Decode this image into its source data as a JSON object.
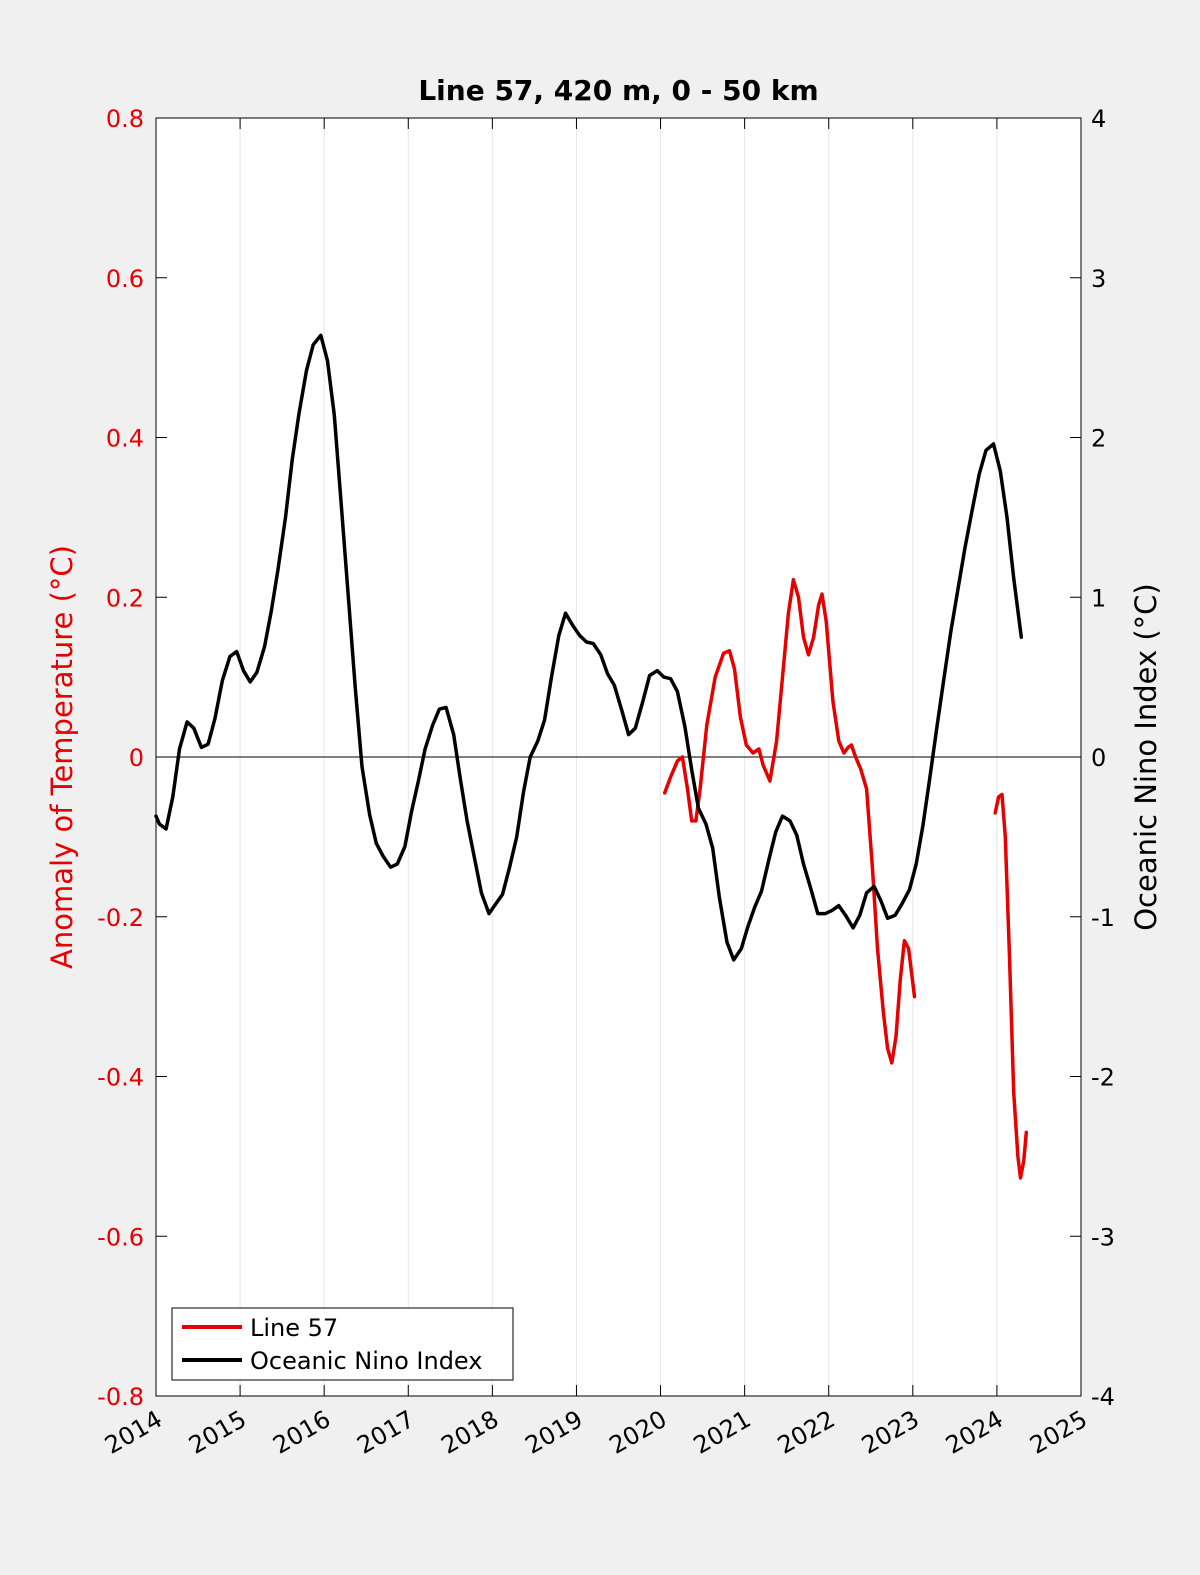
{
  "chart_data": {
    "type": "line",
    "title": "Line 57, 420 m, 0 - 50 km",
    "xlabel": "",
    "ylabel_left": "Anomaly of Temperature (°C)",
    "ylabel_right": "Oceanic Nino Index (°C)",
    "xlim": [
      2014,
      2025
    ],
    "ylim_left": [
      -0.8,
      0.8
    ],
    "ylim_right": [
      -4,
      4
    ],
    "x_ticks": [
      "2014",
      "2015",
      "2016",
      "2017",
      "2018",
      "2019",
      "2020",
      "2021",
      "2022",
      "2023",
      "2024",
      "2025"
    ],
    "y_ticks_left": [
      "-0.8",
      "-0.6",
      "-0.4",
      "-0.2",
      "0",
      "0.2",
      "0.4",
      "0.6",
      "0.8"
    ],
    "y_ticks_right": [
      "-4",
      "-3",
      "-2",
      "-1",
      "0",
      "1",
      "2",
      "3",
      "4"
    ],
    "grid": "vertical",
    "zero_line": true,
    "legend_position": "bottom-left",
    "colors": {
      "line57": "#e60000",
      "oni": "#000000",
      "left_axis": "#e60000",
      "right_axis": "#000000"
    },
    "series": [
      {
        "name": "Line 57",
        "axis": "left",
        "segments": [
          [
            [
              2020.05,
              -0.045
            ],
            [
              2020.12,
              -0.025
            ],
            [
              2020.2,
              -0.005
            ],
            [
              2020.26,
              0.0
            ],
            [
              2020.32,
              -0.04
            ],
            [
              2020.37,
              -0.08
            ],
            [
              2020.42,
              -0.08
            ],
            [
              2020.47,
              -0.04
            ],
            [
              2020.55,
              0.04
            ],
            [
              2020.65,
              0.1
            ],
            [
              2020.75,
              0.13
            ],
            [
              2020.82,
              0.133
            ],
            [
              2020.88,
              0.11
            ],
            [
              2020.95,
              0.05
            ],
            [
              2021.02,
              0.015
            ],
            [
              2021.1,
              0.005
            ],
            [
              2021.17,
              0.01
            ],
            [
              2021.22,
              -0.01
            ],
            [
              2021.3,
              -0.03
            ],
            [
              2021.38,
              0.02
            ],
            [
              2021.45,
              0.1
            ],
            [
              2021.52,
              0.18
            ],
            [
              2021.58,
              0.222
            ],
            [
              2021.64,
              0.2
            ],
            [
              2021.7,
              0.15
            ],
            [
              2021.76,
              0.128
            ],
            [
              2021.82,
              0.15
            ],
            [
              2021.88,
              0.19
            ],
            [
              2021.92,
              0.204
            ],
            [
              2021.97,
              0.17
            ],
            [
              2022.05,
              0.07
            ],
            [
              2022.12,
              0.02
            ],
            [
              2022.18,
              0.005
            ],
            [
              2022.23,
              0.012
            ],
            [
              2022.27,
              0.015
            ],
            [
              2022.32,
              0.0
            ],
            [
              2022.38,
              -0.015
            ],
            [
              2022.45,
              -0.04
            ],
            [
              2022.52,
              -0.14
            ],
            [
              2022.58,
              -0.24
            ],
            [
              2022.65,
              -0.32
            ],
            [
              2022.7,
              -0.365
            ],
            [
              2022.75,
              -0.383
            ],
            [
              2022.8,
              -0.35
            ],
            [
              2022.85,
              -0.28
            ],
            [
              2022.9,
              -0.23
            ],
            [
              2022.95,
              -0.24
            ],
            [
              2023.02,
              -0.3
            ]
          ],
          [
            [
              2023.98,
              -0.07
            ],
            [
              2024.02,
              -0.05
            ],
            [
              2024.06,
              -0.047
            ],
            [
              2024.1,
              -0.1
            ],
            [
              2024.15,
              -0.25
            ],
            [
              2024.2,
              -0.42
            ],
            [
              2024.25,
              -0.5
            ],
            [
              2024.28,
              -0.527
            ],
            [
              2024.32,
              -0.505
            ],
            [
              2024.35,
              -0.47
            ]
          ]
        ]
      },
      {
        "name": "Oceanic Nino Index",
        "axis": "right",
        "segments": [
          [
            [
              2014.0,
              -0.37
            ],
            [
              2014.04,
              -0.42
            ],
            [
              2014.12,
              -0.45
            ],
            [
              2014.2,
              -0.25
            ],
            [
              2014.28,
              0.05
            ],
            [
              2014.37,
              0.22
            ],
            [
              2014.45,
              0.18
            ],
            [
              2014.54,
              0.06
            ],
            [
              2014.62,
              0.08
            ],
            [
              2014.7,
              0.24
            ],
            [
              2014.79,
              0.48
            ],
            [
              2014.88,
              0.63
            ],
            [
              2014.96,
              0.66
            ],
            [
              2015.04,
              0.54
            ],
            [
              2015.12,
              0.47
            ],
            [
              2015.2,
              0.53
            ],
            [
              2015.29,
              0.69
            ],
            [
              2015.37,
              0.91
            ],
            [
              2015.45,
              1.17
            ],
            [
              2015.54,
              1.5
            ],
            [
              2015.62,
              1.86
            ],
            [
              2015.7,
              2.15
            ],
            [
              2015.79,
              2.42
            ],
            [
              2015.87,
              2.58
            ],
            [
              2015.96,
              2.64
            ],
            [
              2016.04,
              2.48
            ],
            [
              2016.12,
              2.14
            ],
            [
              2016.2,
              1.6
            ],
            [
              2016.29,
              0.98
            ],
            [
              2016.37,
              0.43
            ],
            [
              2016.45,
              -0.06
            ],
            [
              2016.54,
              -0.36
            ],
            [
              2016.62,
              -0.54
            ],
            [
              2016.7,
              -0.62
            ],
            [
              2016.79,
              -0.69
            ],
            [
              2016.87,
              -0.67
            ],
            [
              2016.96,
              -0.56
            ],
            [
              2017.04,
              -0.34
            ],
            [
              2017.12,
              -0.15
            ],
            [
              2017.2,
              0.05
            ],
            [
              2017.29,
              0.2
            ],
            [
              2017.37,
              0.3
            ],
            [
              2017.45,
              0.31
            ],
            [
              2017.54,
              0.14
            ],
            [
              2017.62,
              -0.14
            ],
            [
              2017.7,
              -0.4
            ],
            [
              2017.79,
              -0.64
            ],
            [
              2017.87,
              -0.85
            ],
            [
              2017.96,
              -0.98
            ],
            [
              2018.04,
              -0.92
            ],
            [
              2018.12,
              -0.86
            ],
            [
              2018.2,
              -0.7
            ],
            [
              2018.29,
              -0.5
            ],
            [
              2018.37,
              -0.22
            ],
            [
              2018.45,
              0.0
            ],
            [
              2018.54,
              0.1
            ],
            [
              2018.62,
              0.23
            ],
            [
              2018.7,
              0.49
            ],
            [
              2018.79,
              0.76
            ],
            [
              2018.87,
              0.9
            ],
            [
              2018.96,
              0.82
            ],
            [
              2019.04,
              0.76
            ],
            [
              2019.12,
              0.72
            ],
            [
              2019.2,
              0.71
            ],
            [
              2019.29,
              0.64
            ],
            [
              2019.37,
              0.52
            ],
            [
              2019.45,
              0.45
            ],
            [
              2019.54,
              0.29
            ],
            [
              2019.62,
              0.14
            ],
            [
              2019.7,
              0.18
            ],
            [
              2019.79,
              0.35
            ],
            [
              2019.87,
              0.51
            ],
            [
              2019.96,
              0.54
            ],
            [
              2020.04,
              0.5
            ],
            [
              2020.12,
              0.49
            ],
            [
              2020.2,
              0.41
            ],
            [
              2020.29,
              0.19
            ],
            [
              2020.37,
              -0.08
            ],
            [
              2020.45,
              -0.32
            ],
            [
              2020.54,
              -0.42
            ],
            [
              2020.62,
              -0.57
            ],
            [
              2020.7,
              -0.88
            ],
            [
              2020.79,
              -1.16
            ],
            [
              2020.87,
              -1.27
            ],
            [
              2020.96,
              -1.2
            ],
            [
              2021.04,
              -1.06
            ],
            [
              2021.12,
              -0.94
            ],
            [
              2021.2,
              -0.84
            ],
            [
              2021.29,
              -0.64
            ],
            [
              2021.37,
              -0.47
            ],
            [
              2021.45,
              -0.37
            ],
            [
              2021.54,
              -0.4
            ],
            [
              2021.62,
              -0.49
            ],
            [
              2021.7,
              -0.67
            ],
            [
              2021.79,
              -0.83
            ],
            [
              2021.87,
              -0.98
            ],
            [
              2021.96,
              -0.98
            ],
            [
              2022.04,
              -0.96
            ],
            [
              2022.12,
              -0.93
            ],
            [
              2022.2,
              -0.99
            ],
            [
              2022.29,
              -1.07
            ],
            [
              2022.37,
              -0.99
            ],
            [
              2022.45,
              -0.85
            ],
            [
              2022.54,
              -0.81
            ],
            [
              2022.62,
              -0.9
            ],
            [
              2022.7,
              -1.01
            ],
            [
              2022.79,
              -0.99
            ],
            [
              2022.87,
              -0.92
            ],
            [
              2022.96,
              -0.83
            ],
            [
              2023.04,
              -0.67
            ],
            [
              2023.12,
              -0.43
            ],
            [
              2023.2,
              -0.14
            ],
            [
              2023.29,
              0.2
            ],
            [
              2023.37,
              0.49
            ],
            [
              2023.45,
              0.78
            ],
            [
              2023.54,
              1.06
            ],
            [
              2023.62,
              1.31
            ],
            [
              2023.7,
              1.53
            ],
            [
              2023.79,
              1.77
            ],
            [
              2023.87,
              1.92
            ],
            [
              2023.96,
              1.96
            ],
            [
              2024.04,
              1.79
            ],
            [
              2024.12,
              1.5
            ],
            [
              2024.2,
              1.12
            ],
            [
              2024.29,
              0.75
            ]
          ]
        ]
      }
    ]
  }
}
